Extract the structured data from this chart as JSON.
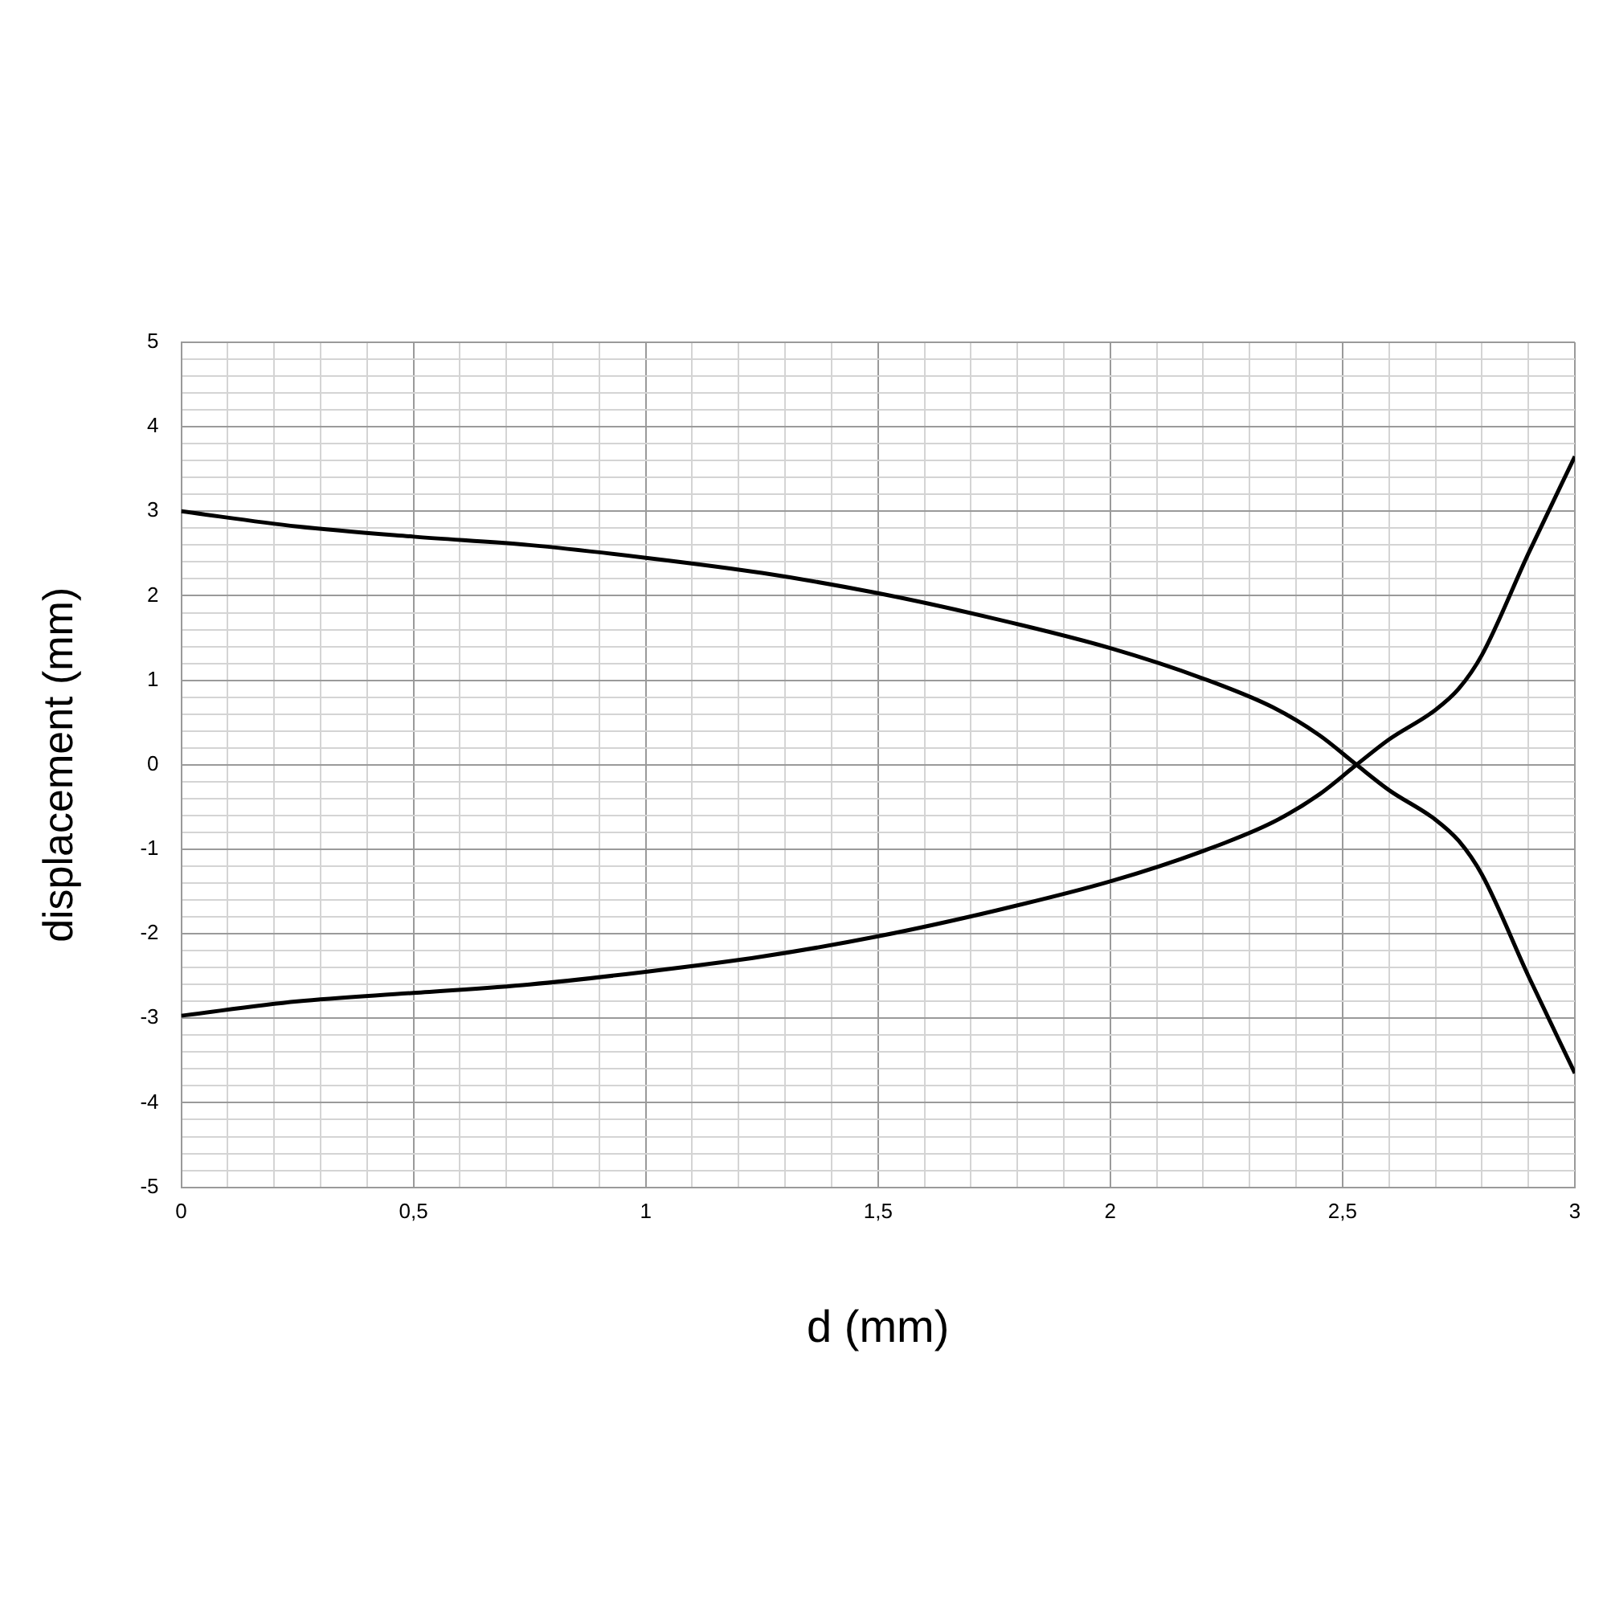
{
  "chart_data": {
    "type": "line",
    "xlabel": "d (mm)",
    "ylabel": "displacement (mm)",
    "xlim": [
      0,
      3
    ],
    "ylim": [
      -5,
      5
    ],
    "x": [
      0,
      0.25,
      0.5,
      0.75,
      1,
      1.25,
      1.5,
      1.75,
      2,
      2.2,
      2.35,
      2.45,
      2.53,
      2.6,
      2.7,
      2.75,
      2.8,
      2.9,
      3
    ],
    "series": [
      {
        "color": "#000000",
        "values": [
          3.0,
          2.82,
          2.7,
          2.6,
          2.45,
          2.27,
          2.03,
          1.73,
          1.38,
          1.02,
          0.68,
          0.35,
          0.0,
          -0.3,
          -0.65,
          -0.9,
          -1.3,
          -2.5,
          -3.65
        ]
      },
      {
        "color": "#000000",
        "values": [
          -2.97,
          -2.8,
          -2.7,
          -2.6,
          -2.45,
          -2.27,
          -2.03,
          -1.73,
          -1.38,
          -1.02,
          -0.68,
          -0.35,
          0.0,
          0.3,
          0.65,
          0.9,
          1.3,
          2.5,
          3.65
        ]
      }
    ],
    "xticks": [
      0,
      {
        "value": 0.1,
        "label": null
      },
      {
        "value": 0.2,
        "label": null
      },
      {
        "value": 0.3,
        "label": null
      },
      {
        "value": 0.4,
        "label": null
      },
      {
        "value": 0.5,
        "label": "0,5"
      },
      {
        "value": 0.6,
        "label": null
      },
      {
        "value": 0.7,
        "label": null
      },
      {
        "value": 0.8,
        "label": null
      },
      {
        "value": 0.9,
        "label": null
      },
      1,
      {
        "value": 1.1,
        "label": null
      },
      {
        "value": 1.2,
        "label": null
      },
      {
        "value": 1.3,
        "label": null
      },
      {
        "value": 1.4,
        "label": null
      },
      {
        "value": 1.5,
        "label": "1,5"
      },
      {
        "value": 1.6,
        "label": null
      },
      {
        "value": 1.7,
        "label": null
      },
      {
        "value": 1.8,
        "label": null
      },
      {
        "value": 1.9,
        "label": null
      },
      2,
      {
        "value": 2.1,
        "label": null
      },
      {
        "value": 2.2,
        "label": null
      },
      {
        "value": 2.3,
        "label": null
      },
      {
        "value": 2.4,
        "label": null
      },
      {
        "value": 2.5,
        "label": "2,5"
      },
      {
        "value": 2.6,
        "label": null
      },
      {
        "value": 2.7,
        "label": null
      },
      {
        "value": 2.8,
        "label": null
      },
      {
        "value": 2.9,
        "label": null
      },
      3
    ],
    "yticks": [
      -5,
      {
        "value": -4.8,
        "label": null
      },
      {
        "value": -4.6,
        "label": null
      },
      {
        "value": -4.4,
        "label": null
      },
      {
        "value": -4.2,
        "label": null
      },
      -4,
      {
        "value": -3.8,
        "label": null
      },
      {
        "value": -3.6,
        "label": null
      },
      {
        "value": -3.4,
        "label": null
      },
      {
        "value": -3.2,
        "label": null
      },
      -3,
      {
        "value": -2.8,
        "label": null
      },
      {
        "value": -2.6,
        "label": null
      },
      {
        "value": -2.4,
        "label": null
      },
      {
        "value": -2.2,
        "label": null
      },
      -2,
      {
        "value": -1.8,
        "label": null
      },
      {
        "value": -1.6,
        "label": null
      },
      {
        "value": -1.4,
        "label": null
      },
      {
        "value": -1.2,
        "label": null
      },
      -1,
      {
        "value": -0.8,
        "label": null
      },
      {
        "value": -0.6,
        "label": null
      },
      {
        "value": -0.4,
        "label": null
      },
      {
        "value": -0.2,
        "label": null
      },
      0,
      {
        "value": 0.2,
        "label": null
      },
      {
        "value": 0.4,
        "label": null
      },
      {
        "value": 0.6,
        "label": null
      },
      {
        "value": 0.8,
        "label": null
      },
      1,
      {
        "value": 1.2,
        "label": null
      },
      {
        "value": 1.4,
        "label": null
      },
      {
        "value": 1.6,
        "label": null
      },
      {
        "value": 1.8,
        "label": null
      },
      2,
      {
        "value": 2.2,
        "label": null
      },
      {
        "value": 2.4,
        "label": null
      },
      {
        "value": 2.6,
        "label": null
      },
      {
        "value": 2.8,
        "label": null
      },
      3,
      {
        "value": 3.2,
        "label": null
      },
      {
        "value": 3.4,
        "label": null
      },
      {
        "value": 3.6,
        "label": null
      },
      {
        "value": 3.8,
        "label": null
      },
      4,
      {
        "value": 4.2,
        "label": null
      },
      {
        "value": 4.4,
        "label": null
      },
      {
        "value": 4.6,
        "label": null
      },
      {
        "value": 4.8,
        "label": null
      },
      5
    ],
    "grid": true,
    "marker": "none",
    "line_style": "solid"
  }
}
